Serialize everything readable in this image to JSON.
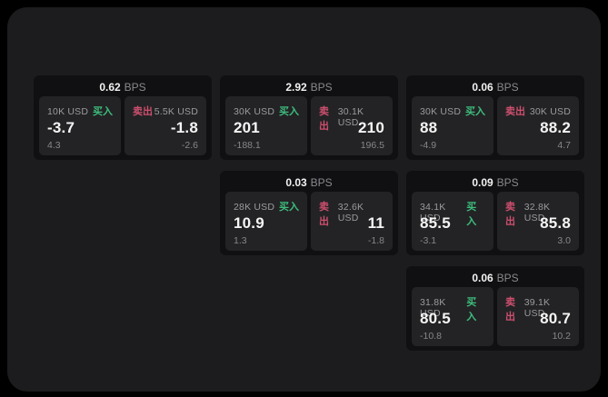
{
  "colors": {
    "page_background": "#000000",
    "panel_background": "#1c1c1e",
    "card_background": "#101012",
    "tile_background": "#232325",
    "buy_green": "#3dbd7d",
    "sell_red": "#cd4f6e",
    "primary_text": "#f5f5f5",
    "muted_text": "#9b9b9f"
  },
  "cards": [
    {
      "bps": "0.62",
      "unit": "BPS",
      "buy": {
        "amount": "10K USD",
        "label": "买入",
        "main": "-3.7",
        "sub": "4.3"
      },
      "sell": {
        "label": "卖出",
        "amount": "5.5K USD",
        "main": "-1.8",
        "sub": "-2.6"
      }
    },
    {
      "bps": "2.92",
      "unit": "BPS",
      "buy": {
        "amount": "30K USD",
        "label": "买入",
        "main": "201",
        "sub": "-188.1"
      },
      "sell": {
        "label": "卖出",
        "amount": "30.1K USD",
        "main": "210",
        "sub": "196.5"
      }
    },
    {
      "bps": "0.06",
      "unit": "BPS",
      "buy": {
        "amount": "30K USD",
        "label": "买入",
        "main": "88",
        "sub": "-4.9"
      },
      "sell": {
        "label": "卖出",
        "amount": "30K USD",
        "main": "88.2",
        "sub": "4.7"
      }
    },
    {
      "bps": "0.03",
      "unit": "BPS",
      "buy": {
        "amount": "28K USD",
        "label": "买入",
        "main": "10.9",
        "sub": "1.3"
      },
      "sell": {
        "label": "卖出",
        "amount": "32.6K USD",
        "main": "11",
        "sub": "-1.8"
      }
    },
    {
      "bps": "0.09",
      "unit": "BPS",
      "buy": {
        "amount": "34.1K USD",
        "label": "买入",
        "main": "85.5",
        "sub": "-3.1"
      },
      "sell": {
        "label": "卖出",
        "amount": "32.8K USD",
        "main": "85.8",
        "sub": "3.0"
      }
    },
    {
      "bps": "0.06",
      "unit": "BPS",
      "buy": {
        "amount": "31.8K USD",
        "label": "买入",
        "main": "80.5",
        "sub": "-10.8"
      },
      "sell": {
        "label": "卖出",
        "amount": "39.1K USD",
        "main": "80.7",
        "sub": "10.2"
      }
    }
  ]
}
